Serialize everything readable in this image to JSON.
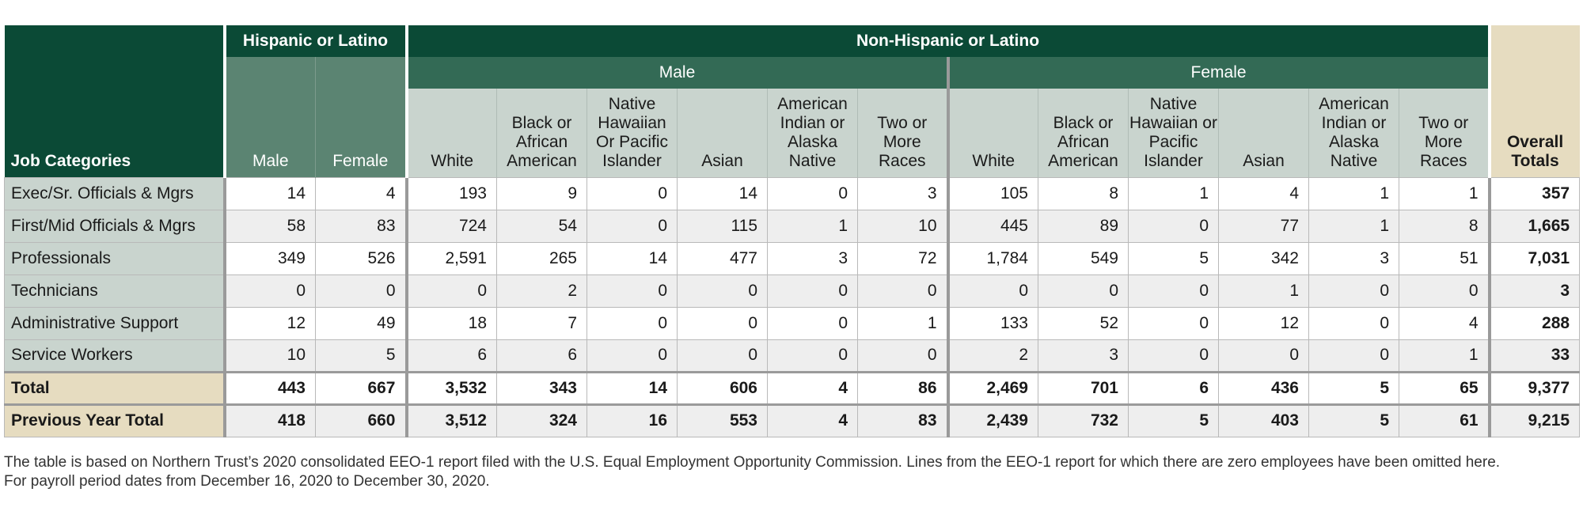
{
  "table": {
    "header": {
      "job_categories": "Job Categories",
      "hispanic": "Hispanic or Latino",
      "non_hispanic": "Non-Hispanic or Latino",
      "male_group": "Male",
      "female_group": "Female",
      "overall_totals": "Overall Totals",
      "hisp_cols": [
        "Male",
        "Female"
      ],
      "race_cols": [
        "White",
        "Black or African American",
        "Native Hawaiian Or Pacific Islander",
        "Asian",
        "American Indian or Alaska Native",
        "Two or More Races"
      ],
      "race_cols_female": [
        "White",
        "Black or African American",
        "Native Hawaiian or Pacific Islander",
        "Asian",
        "American Indian or Alaska Native",
        "Two or More Races"
      ]
    },
    "rows": [
      {
        "category": "Exec/Sr. Officials & Mgrs",
        "values": [
          "14",
          "4",
          "193",
          "9",
          "0",
          "14",
          "0",
          "3",
          "105",
          "8",
          "1",
          "4",
          "1",
          "1"
        ],
        "total": "357"
      },
      {
        "category": "First/Mid Officials & Mgrs",
        "values": [
          "58",
          "83",
          "724",
          "54",
          "0",
          "115",
          "1",
          "10",
          "445",
          "89",
          "0",
          "77",
          "1",
          "8"
        ],
        "total": "1,665"
      },
      {
        "category": "Professionals",
        "values": [
          "349",
          "526",
          "2,591",
          "265",
          "14",
          "477",
          "3",
          "72",
          "1,784",
          "549",
          "5",
          "342",
          "3",
          "51"
        ],
        "total": "7,031"
      },
      {
        "category": "Technicians",
        "values": [
          "0",
          "0",
          "0",
          "2",
          "0",
          "0",
          "0",
          "0",
          "0",
          "0",
          "0",
          "1",
          "0",
          "0"
        ],
        "total": "3"
      },
      {
        "category": "Administrative Support",
        "values": [
          "12",
          "49",
          "18",
          "7",
          "0",
          "0",
          "0",
          "1",
          "133",
          "52",
          "0",
          "12",
          "0",
          "4"
        ],
        "total": "288"
      },
      {
        "category": "Service Workers",
        "values": [
          "10",
          "5",
          "6",
          "6",
          "0",
          "0",
          "0",
          "0",
          "2",
          "3",
          "0",
          "0",
          "0",
          "1"
        ],
        "total": "33"
      }
    ],
    "summary_rows": [
      {
        "category": "Total",
        "values": [
          "443",
          "667",
          "3,532",
          "343",
          "14",
          "606",
          "4",
          "86",
          "2,469",
          "701",
          "6",
          "436",
          "5",
          "65"
        ],
        "total": "9,377"
      },
      {
        "category": "Previous Year Total",
        "values": [
          "418",
          "660",
          "3,512",
          "324",
          "16",
          "553",
          "4",
          "83",
          "2,439",
          "732",
          "5",
          "403",
          "5",
          "61"
        ],
        "total": "9,215"
      }
    ]
  },
  "footnote": {
    "line1": "The table is based on Northern Trust’s 2020 consolidated EEO-1 report filed with the U.S. Equal Employment Opportunity Commission. Lines from the EEO-1 report for which there are zero employees have been omitted here.",
    "line2": "For payroll period dates from December 16, 2020 to December 30, 2020."
  },
  "colors": {
    "dark_green": "#0b4a36",
    "mid_green": "#336a55",
    "light_green": "#5b8472",
    "pale_green": "#c9d4ce",
    "tan": "#e6dcc0"
  }
}
